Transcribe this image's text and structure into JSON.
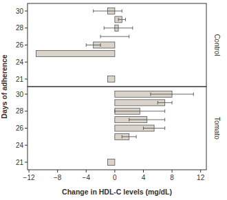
{
  "chart_data": {
    "type": "bar",
    "orientation": "horizontal",
    "x_label": "Change in HDL-C levels (mg/dL)",
    "y_label": "Days of adherence",
    "categories": [
      "21",
      null,
      "24",
      null,
      "26",
      null,
      "28",
      null,
      "30"
    ],
    "xlim": [
      -12.2,
      12.8
    ],
    "xticks": [
      {
        "value": -12,
        "label": "−12"
      },
      {
        "value": -8,
        "label": "−8"
      },
      {
        "value": -4,
        "label": "−4"
      },
      0,
      4,
      8,
      12
    ],
    "color": "#d9d3c9",
    "series": [
      {
        "name": "Control",
        "values": [
          -1,
          null,
          null,
          -11,
          -3,
          0,
          0.5,
          1,
          -1
        ],
        "errors": [
          null,
          null,
          null,
          null,
          1,
          2,
          2,
          0.5,
          2
        ]
      },
      {
        "name": "Tomato",
        "values": [
          -1,
          null,
          null,
          2,
          5.5,
          4.5,
          3.5,
          7,
          8
        ],
        "errors": [
          null,
          null,
          null,
          1,
          1.5,
          2.5,
          3.5,
          1,
          3
        ]
      }
    ]
  }
}
